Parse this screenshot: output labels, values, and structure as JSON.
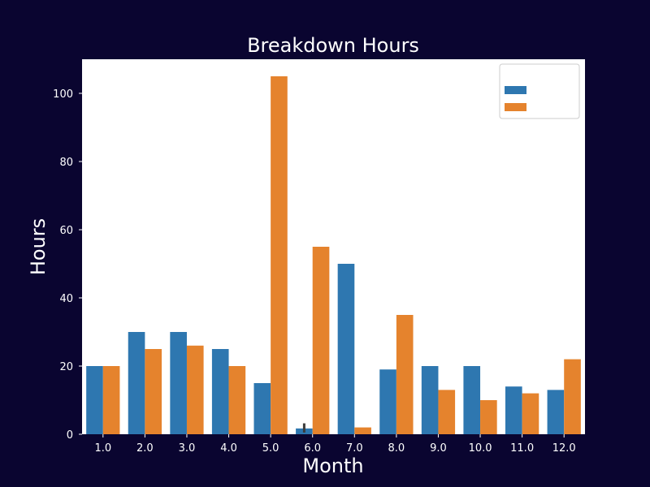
{
  "colors": {
    "background": "#0a0530",
    "plot_background": "#ffffff",
    "text": "#ffffff",
    "series": [
      "#2e77b0",
      "#e5832d"
    ],
    "error_bar": "#3b3b3b"
  },
  "chart_data": {
    "type": "bar",
    "title": "Breakdown Hours",
    "xlabel": "Month",
    "ylabel": "Hours",
    "categories": [
      "1.0",
      "2.0",
      "3.0",
      "4.0",
      "5.0",
      "6.0",
      "7.0",
      "8.0",
      "9.0",
      "10.0",
      "11.0",
      "12.0"
    ],
    "series": [
      {
        "values": [
          20,
          30,
          30,
          25,
          15,
          1.7,
          50,
          19,
          20,
          20,
          14,
          13
        ]
      },
      {
        "values": [
          20,
          25,
          26,
          20,
          105,
          55,
          2,
          35,
          13,
          10,
          12,
          22
        ]
      }
    ],
    "error_bars": [
      {
        "series": 0,
        "category": "6.0",
        "low": 0.5,
        "high": 3.2
      }
    ],
    "ylim": [
      0,
      110
    ],
    "yticks": [
      0,
      20,
      40,
      60,
      80,
      100
    ],
    "grid": false,
    "legend": {
      "placement": "top-right",
      "labels": [
        "",
        ""
      ]
    }
  }
}
